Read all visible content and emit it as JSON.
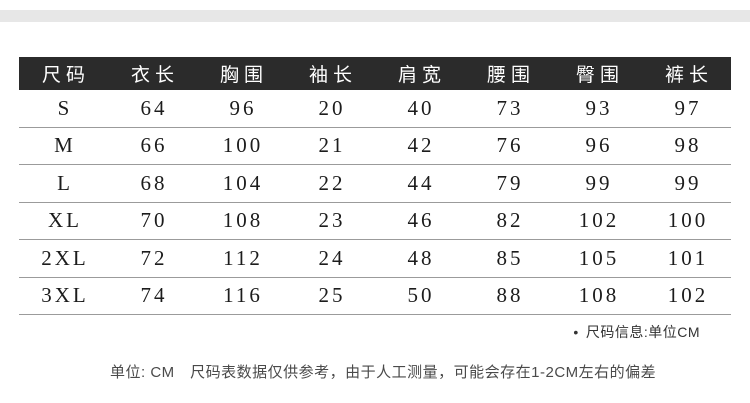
{
  "colors": {
    "header_bg": "#2b2b2b",
    "header_text": "#ffffff",
    "row_divider": "#9b9b9b",
    "table_text": "#1c1c1c",
    "note_text": "#333333",
    "disclaimer_text": "#4a4a4a",
    "top_band": "#e7e7e7"
  },
  "chart_data": {
    "type": "table",
    "unit": "CM",
    "columns": [
      "尺码",
      "衣长",
      "胸围",
      "袖长",
      "肩宽",
      "腰围",
      "臀围",
      "裤长"
    ],
    "rows": [
      [
        "S",
        "64",
        "96",
        "20",
        "40",
        "73",
        "93",
        "97"
      ],
      [
        "M",
        "66",
        "100",
        "21",
        "42",
        "76",
        "96",
        "98"
      ],
      [
        "L",
        "68",
        "104",
        "22",
        "44",
        "79",
        "99",
        "99"
      ],
      [
        "XL",
        "70",
        "108",
        "23",
        "46",
        "82",
        "102",
        "100"
      ],
      [
        "2XL",
        "72",
        "112",
        "24",
        "48",
        "85",
        "105",
        "101"
      ],
      [
        "3XL",
        "74",
        "116",
        "25",
        "50",
        "88",
        "108",
        "102"
      ]
    ]
  },
  "notes": {
    "bullet": "•",
    "size_info": "尺码信息:单位CM",
    "disclaimer": "单位: CM　尺码表数据仅供参考，由于人工测量，可能会存在1-2CM左右的偏差"
  }
}
